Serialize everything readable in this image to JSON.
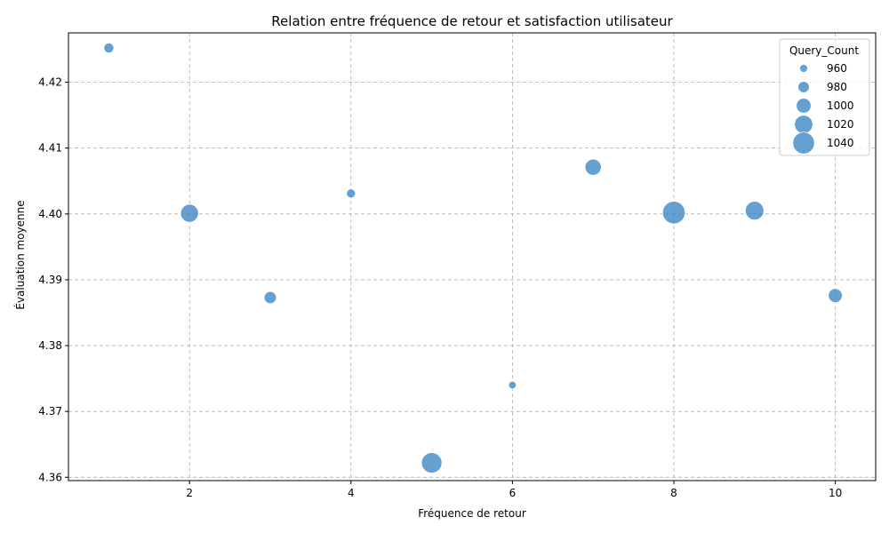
{
  "chart_data": {
    "type": "scatter",
    "title": "Relation entre fréquence de retour et satisfaction utilisateur",
    "xlabel": "Fréquence de retour",
    "ylabel": "Évaluation moyenne",
    "xlim": [
      0.5,
      10.5
    ],
    "ylim": [
      4.3595,
      4.4275
    ],
    "xticks": [
      2,
      4,
      6,
      8,
      10
    ],
    "yticks": [
      4.36,
      4.37,
      4.38,
      4.39,
      4.4,
      4.41,
      4.42
    ],
    "grid": true,
    "legend_position": "top-right",
    "size_legend": {
      "title": "Query_Count",
      "entries": [
        960,
        980,
        1000,
        1020,
        1040
      ]
    },
    "point_color": "#3a85c3",
    "points": [
      {
        "x": 1,
        "y": 4.4252,
        "size": 972
      },
      {
        "x": 2,
        "y": 4.4001,
        "size": 1018
      },
      {
        "x": 3,
        "y": 4.3873,
        "size": 985
      },
      {
        "x": 4,
        "y": 4.4031,
        "size": 966
      },
      {
        "x": 5,
        "y": 4.3622,
        "size": 1033
      },
      {
        "x": 6,
        "y": 4.374,
        "size": 958
      },
      {
        "x": 7,
        "y": 4.4071,
        "size": 1008
      },
      {
        "x": 8,
        "y": 4.4002,
        "size": 1045
      },
      {
        "x": 9,
        "y": 4.4005,
        "size": 1022
      },
      {
        "x": 10,
        "y": 4.3876,
        "size": 995
      }
    ]
  }
}
